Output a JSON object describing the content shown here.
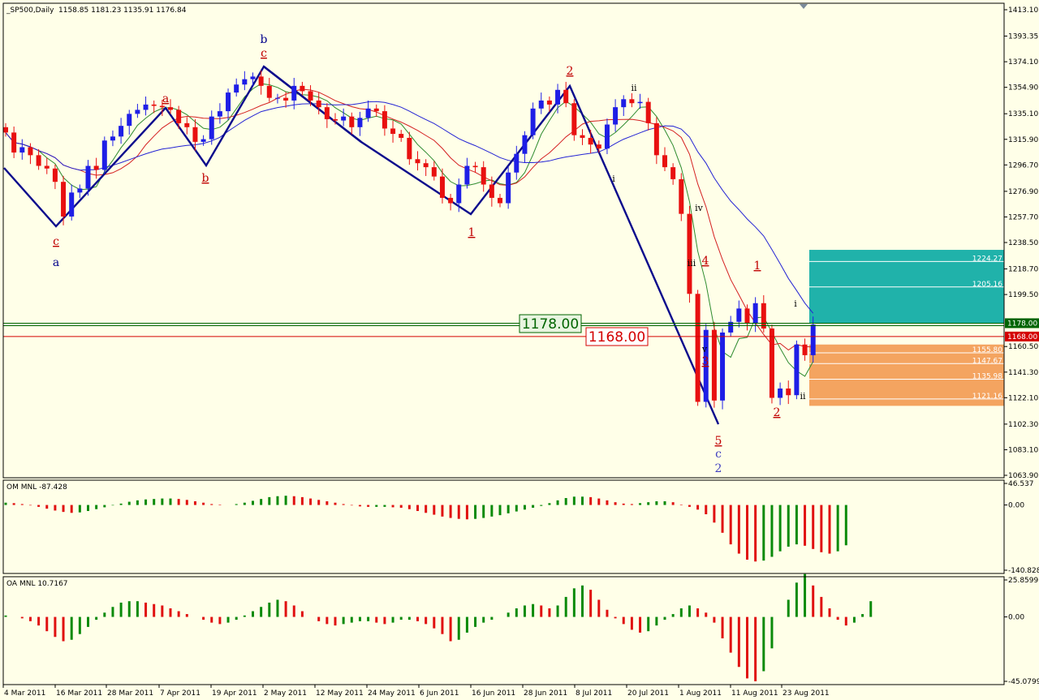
{
  "chart_data": {
    "type": "candlestick",
    "title": "_SP500,Daily",
    "ohlc_label": "1158.85 1181.23 1135.91 1176.84",
    "x_labels": [
      "4 Mar 2011",
      "16 Mar 2011",
      "28 Mar 2011",
      "7 Apr 2011",
      "19 Apr 2011",
      "2 May 2011",
      "12 May 2011",
      "24 May 2011",
      "6 Jun 2011",
      "16 Jun 2011",
      "28 Jun 2011",
      "8 Jul 2011",
      "20 Jul 2011",
      "1 Aug 2011",
      "11 Aug 2011",
      "23 Aug 2011"
    ],
    "y_ticks": [
      "1413.10",
      "1393.35",
      "1374.10",
      "1354.90",
      "1335.10",
      "1315.90",
      "1296.70",
      "1276.90",
      "1257.70",
      "1238.50",
      "1218.70",
      "1199.50",
      "1178.00",
      "1168.00",
      "1160.50",
      "1141.30",
      "1122.10",
      "1102.30",
      "1083.10",
      "1063.90"
    ],
    "ylim": [
      1063.9,
      1413.1
    ],
    "bull_color": "#1e1ee6",
    "bear_color": "#e81010",
    "closes": [
      1321,
      1306,
      1310,
      1304,
      1296,
      1294,
      1284,
      1258,
      1276,
      1279,
      1296,
      1293,
      1315,
      1318,
      1326,
      1335,
      1338,
      1342,
      1341,
      1340,
      1338,
      1328,
      1325,
      1314,
      1316,
      1333,
      1337,
      1351,
      1357,
      1361,
      1363,
      1356,
      1347,
      1347,
      1345,
      1356,
      1352,
      1345,
      1340,
      1331,
      1330,
      1333,
      1325,
      1332,
      1339,
      1337,
      1324,
      1320,
      1317,
      1301,
      1298,
      1295,
      1288,
      1272,
      1268,
      1282,
      1296,
      1295,
      1282,
      1272,
      1268,
      1291,
      1305,
      1319,
      1339,
      1345,
      1342,
      1353,
      1343,
      1319,
      1317,
      1312,
      1309,
      1327,
      1340,
      1346,
      1343,
      1344,
      1328,
      1304,
      1295,
      1286,
      1260,
      1200,
      1119,
      1173,
      1120,
      1171,
      1179,
      1189,
      1178,
      1193,
      1174,
      1122,
      1129,
      1124,
      1162,
      1154,
      1177
    ],
    "levels": [
      {
        "value": "1178.00",
        "color": "#006400"
      },
      {
        "value": "1168.00",
        "color": "#d40000"
      }
    ],
    "zones": [
      {
        "from": 1178,
        "to": 1233,
        "color": "#20b2aa",
        "lines": [
          "1224.27",
          "1205.16"
        ]
      },
      {
        "from": 1116,
        "to": 1162,
        "color": "#f4a460",
        "lines": [
          "1155.80",
          "1147.67",
          "1135.98",
          "1121.16"
        ]
      }
    ],
    "wave_labels": [
      {
        "text": "c",
        "color": "#c00000"
      },
      {
        "text": "a",
        "color": "#00008b"
      },
      {
        "text": "a",
        "color": "#c00000"
      },
      {
        "text": "b",
        "color": "#c00000"
      },
      {
        "text": "b",
        "color": "#00008b"
      },
      {
        "text": "c",
        "color": "#c00000"
      },
      {
        "text": "1",
        "color": "#c00000"
      },
      {
        "text": "2",
        "color": "#c00000"
      },
      {
        "text": "ii",
        "color": "#000000"
      },
      {
        "text": "i",
        "color": "#000000"
      },
      {
        "text": "iv",
        "color": "#000000"
      },
      {
        "text": "iii",
        "color": "#000000"
      },
      {
        "text": "4",
        "color": "#c00000"
      },
      {
        "text": "v",
        "color": "#000000"
      },
      {
        "text": "3",
        "color": "#c00000"
      },
      {
        "text": "5",
        "color": "#c00000"
      },
      {
        "text": "c",
        "color": "#4040c0"
      },
      {
        "text": "2",
        "color": "#4040c0"
      },
      {
        "text": "1",
        "color": "#c00000"
      },
      {
        "text": "2",
        "color": "#c00000"
      },
      {
        "text": "i",
        "color": "#000000"
      },
      {
        "text": "ii",
        "color": "#000000"
      }
    ],
    "indicators": [
      {
        "name": "OM MNL -87.428",
        "ticks": [
          "46.537",
          "0.00",
          "-140.828"
        ],
        "range": [
          -140.828,
          46.537
        ],
        "values": [
          5,
          4,
          2,
          -1,
          -4,
          -8,
          -12,
          -15,
          -17,
          -16,
          -13,
          -9,
          -5,
          -1,
          3,
          7,
          10,
          12,
          13,
          14,
          14,
          13,
          11,
          8,
          5,
          2,
          1,
          0,
          2,
          5,
          9,
          13,
          17,
          19,
          20,
          19,
          17,
          14,
          11,
          8,
          5,
          2,
          -1,
          -3,
          -4,
          -4,
          -4,
          -5,
          -6,
          -9,
          -13,
          -17,
          -21,
          -25,
          -28,
          -30,
          -31,
          -30,
          -28,
          -25,
          -22,
          -18,
          -14,
          -10,
          -6,
          -2,
          4,
          10,
          15,
          18,
          18,
          17,
          14,
          10,
          6,
          3,
          2,
          4,
          6,
          8,
          8,
          6,
          1,
          -4,
          -10,
          -20,
          -38,
          -60,
          -85,
          -105,
          -118,
          -122,
          -120,
          -112,
          -100,
          -90,
          -85,
          -88,
          -95,
          -102,
          -105,
          -100,
          -87
        ]
      },
      {
        "name": "OA MNL 10.7167",
        "ticks": [
          "25.8599",
          "0.00",
          "-45.0799"
        ],
        "range": [
          -45.0799,
          25.8599
        ],
        "values": [
          1,
          0,
          -1,
          -3,
          -6,
          -10,
          -14,
          -17,
          -16,
          -12,
          -7,
          -2,
          3,
          7,
          10,
          11,
          11,
          10,
          9,
          8,
          6,
          4,
          2,
          0,
          -2,
          -4,
          -5,
          -4,
          -2,
          1,
          4,
          7,
          10,
          12,
          11,
          8,
          4,
          0,
          -3,
          -5,
          -6,
          -5,
          -4,
          -3,
          -3,
          -4,
          -5,
          -4,
          -2,
          -2,
          -3,
          -5,
          -8,
          -12,
          -17,
          -16,
          -11,
          -7,
          -4,
          -2,
          0,
          3,
          6,
          8,
          9,
          8,
          6,
          8,
          14,
          20,
          22,
          19,
          12,
          5,
          -1,
          -5,
          -9,
          -11,
          -10,
          -6,
          -2,
          2,
          6,
          8,
          6,
          3,
          -4,
          -15,
          -25,
          -35,
          -43,
          -45,
          -38,
          -22,
          0,
          12,
          24,
          30,
          22,
          14,
          6,
          -2,
          -6,
          -4,
          2,
          11
        ]
      }
    ]
  }
}
